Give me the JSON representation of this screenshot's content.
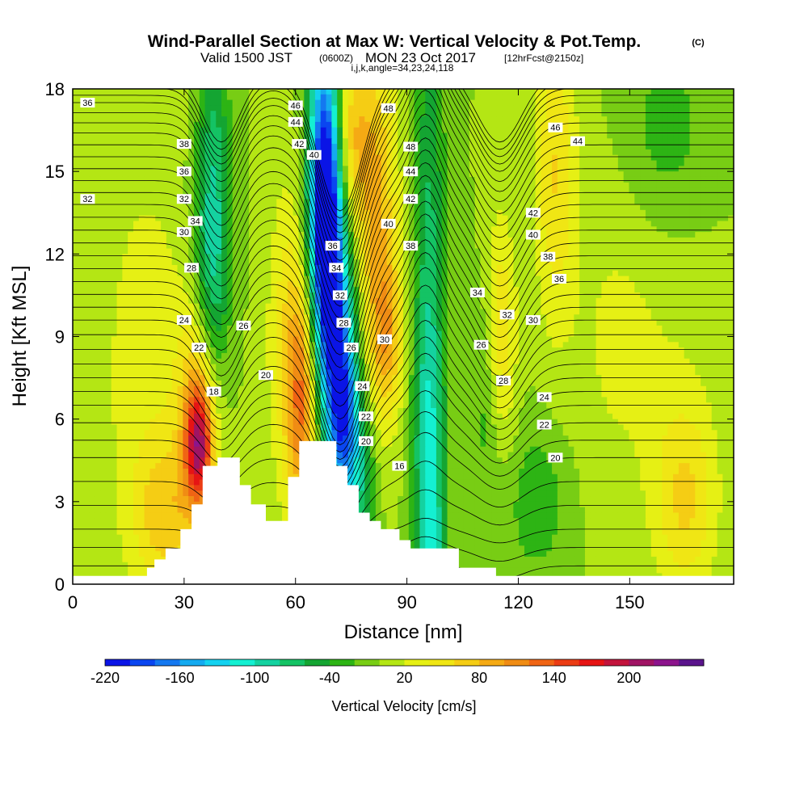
{
  "title": {
    "main": "Wind-Parallel Section at Max W: Vertical Velocity & Pot.Temp.",
    "mark": "(C)",
    "line2_a": "Valid 1500 JST",
    "line2_b": "(0600Z)",
    "line2_c": "MON 23 Oct 2017",
    "line2_d": "[12hrFcst@2150z]",
    "line3": "i,j,k,angle=34,23,24,118"
  },
  "chart_data": {
    "type": "heatmap",
    "xlabel": "Distance [nm]",
    "ylabel": "Height [Kft MSL]",
    "xlim": [
      0,
      178
    ],
    "ylim": [
      0,
      18
    ],
    "xticks": [
      0,
      30,
      60,
      90,
      120,
      150
    ],
    "yticks": [
      0,
      3,
      6,
      9,
      12,
      15,
      18
    ],
    "grid": false,
    "colorbar": {
      "title": "Vertical Velocity [cm/s]",
      "min": -220,
      "step": 20,
      "colors": [
        "#0a14e6",
        "#0a46f0",
        "#1478f0",
        "#14aaf0",
        "#14d2f0",
        "#14f0d2",
        "#14d2a0",
        "#14c364",
        "#14a532",
        "#2db414",
        "#78cd14",
        "#b4e614",
        "#e6f014",
        "#f0e614",
        "#f5cd14",
        "#f5aa14",
        "#f08c14",
        "#f06414",
        "#eb3c14",
        "#e61414",
        "#c3143c",
        "#a01464",
        "#8c148c",
        "#5a148c"
      ],
      "labels": [
        {
          "value": -220,
          "text": "-220"
        },
        {
          "value": -160,
          "text": "-160"
        },
        {
          "value": -100,
          "text": "-100"
        },
        {
          "value": -40,
          "text": "-40"
        },
        {
          "value": 20,
          "text": "20"
        },
        {
          "value": 80,
          "text": "80"
        },
        {
          "value": 140,
          "text": "140"
        },
        {
          "value": 200,
          "text": "200"
        }
      ]
    },
    "vertical_velocity_features": [
      {
        "x": 68,
        "y": 14.5,
        "sx": 3,
        "sy": 4,
        "value": -220
      },
      {
        "x": 70,
        "y": 10.5,
        "sx": 4,
        "sy": 4,
        "value": -140
      },
      {
        "x": 73,
        "y": 6,
        "sx": 3,
        "sy": 2.5,
        "value": -150
      },
      {
        "x": 78,
        "y": 3.5,
        "sx": 3,
        "sy": 2.5,
        "value": -60
      },
      {
        "x": 38,
        "y": 14,
        "sx": 3,
        "sy": 5,
        "value": -70
      },
      {
        "x": 36,
        "y": 11,
        "sx": 4,
        "sy": 3,
        "value": -50
      },
      {
        "x": 96,
        "y": 13,
        "sx": 3,
        "sy": 6,
        "value": -60
      },
      {
        "x": 96,
        "y": 4,
        "sx": 3,
        "sy": 4,
        "value": -90
      },
      {
        "x": 97,
        "y": 1.5,
        "sx": 2,
        "sy": 1,
        "value": -40
      },
      {
        "x": 112,
        "y": 7,
        "sx": 3,
        "sy": 3,
        "value": -40
      },
      {
        "x": 125,
        "y": 3,
        "sx": 6,
        "sy": 2,
        "value": -35
      },
      {
        "x": 160,
        "y": 16.5,
        "sx": 8,
        "sy": 2.5,
        "value": -30
      },
      {
        "x": 34,
        "y": 5,
        "sx": 2.5,
        "sy": 1.5,
        "value": 150
      },
      {
        "x": 34,
        "y": 7,
        "sx": 4,
        "sy": 3,
        "value": 80
      },
      {
        "x": 62,
        "y": 6.5,
        "sx": 3,
        "sy": 3,
        "value": 110
      },
      {
        "x": 58,
        "y": 9,
        "sx": 4,
        "sy": 4,
        "value": 50
      },
      {
        "x": 74,
        "y": 16,
        "sx": 4,
        "sy": 2.5,
        "value": 90
      },
      {
        "x": 82,
        "y": 13,
        "sx": 4,
        "sy": 5,
        "value": 80
      },
      {
        "x": 85,
        "y": 9,
        "sx": 3,
        "sy": 2,
        "value": 60
      },
      {
        "x": 115,
        "y": 9,
        "sx": 3,
        "sy": 3,
        "value": 70
      },
      {
        "x": 130,
        "y": 15,
        "sx": 4,
        "sy": 4,
        "value": 60
      },
      {
        "x": 165,
        "y": 3,
        "sx": 6,
        "sy": 2.5,
        "value": 60
      },
      {
        "x": 20,
        "y": 8,
        "sx": 10,
        "sy": 6,
        "value": 30
      },
      {
        "x": 145,
        "y": 9,
        "sx": 8,
        "sy": 4,
        "value": 20
      },
      {
        "x": 160,
        "y": 8,
        "sx": 10,
        "sy": 4,
        "value": 15
      },
      {
        "x": 25,
        "y": 2.5,
        "sx": 6,
        "sy": 2,
        "value": 60
      }
    ],
    "terrain_kft": [
      [
        0,
        0.3
      ],
      [
        20,
        0.3
      ],
      [
        20,
        0.6
      ],
      [
        22,
        0.6
      ],
      [
        22,
        0.9
      ],
      [
        25,
        0.9
      ],
      [
        25,
        1.3
      ],
      [
        29,
        1.3
      ],
      [
        29,
        2
      ],
      [
        32,
        2
      ],
      [
        32,
        2.9
      ],
      [
        35,
        2.9
      ],
      [
        35,
        4.3
      ],
      [
        39,
        4.3
      ],
      [
        39,
        4.6
      ],
      [
        45,
        4.6
      ],
      [
        45,
        3.6
      ],
      [
        48,
        3.6
      ],
      [
        48,
        2.9
      ],
      [
        52,
        2.9
      ],
      [
        52,
        2.3
      ],
      [
        58,
        2.3
      ],
      [
        58,
        3.9
      ],
      [
        61,
        3.9
      ],
      [
        61,
        5.2
      ],
      [
        71,
        5.2
      ],
      [
        71,
        4.3
      ],
      [
        74,
        4.3
      ],
      [
        74,
        3.6
      ],
      [
        77,
        3.6
      ],
      [
        77,
        2.6
      ],
      [
        80,
        2.6
      ],
      [
        80,
        2.3
      ],
      [
        83,
        2.3
      ],
      [
        83,
        2
      ],
      [
        88,
        2
      ],
      [
        88,
        1.6
      ],
      [
        91,
        1.6
      ],
      [
        91,
        1.3
      ],
      [
        104,
        1.3
      ],
      [
        104,
        0.6
      ],
      [
        114,
        0.6
      ],
      [
        114,
        0.3
      ],
      [
        178,
        0.3
      ]
    ],
    "theta_contours": {
      "units": "deg C",
      "interval": 1,
      "min": 12,
      "max": 49,
      "base_levels": [
        12,
        15,
        18,
        21,
        24,
        27,
        30,
        33,
        36,
        39,
        42,
        45,
        48
      ],
      "base_heights_kft": [
        0,
        2,
        4.6,
        6.5,
        8,
        9.6,
        11,
        12.4,
        13.8,
        15.1,
        16.4,
        17.5,
        18.3
      ],
      "perturbations": [
        {
          "x": 40,
          "sx": 5,
          "shift_kft": -2.5
        },
        {
          "x": 72,
          "sx": 6,
          "shift_kft": -5
        },
        {
          "x": 95,
          "sx": 4,
          "shift_kft": 2
        },
        {
          "x": 115,
          "sx": 6,
          "shift_kft": -2.5
        }
      ],
      "labels": [
        {
          "x": 4,
          "y": 17.5,
          "text": "36"
        },
        {
          "x": 4,
          "y": 14,
          "text": "32"
        },
        {
          "x": 60,
          "y": 17.4,
          "text": "46"
        },
        {
          "x": 60,
          "y": 16.8,
          "text": "44"
        },
        {
          "x": 61,
          "y": 16,
          "text": "42"
        },
        {
          "x": 65,
          "y": 15.6,
          "text": "40"
        },
        {
          "x": 30,
          "y": 16,
          "text": "38"
        },
        {
          "x": 30,
          "y": 15,
          "text": "36"
        },
        {
          "x": 30,
          "y": 14,
          "text": "32"
        },
        {
          "x": 33,
          "y": 13.2,
          "text": "34"
        },
        {
          "x": 30,
          "y": 12.8,
          "text": "30"
        },
        {
          "x": 32,
          "y": 11.5,
          "text": "28"
        },
        {
          "x": 30,
          "y": 9.6,
          "text": "24"
        },
        {
          "x": 46,
          "y": 9.4,
          "text": "26"
        },
        {
          "x": 34,
          "y": 8.6,
          "text": "22"
        },
        {
          "x": 52,
          "y": 7.6,
          "text": "20"
        },
        {
          "x": 38,
          "y": 7,
          "text": "18"
        },
        {
          "x": 70,
          "y": 12.3,
          "text": "36"
        },
        {
          "x": 71,
          "y": 11.5,
          "text": "34"
        },
        {
          "x": 72,
          "y": 10.5,
          "text": "32"
        },
        {
          "x": 73,
          "y": 9.5,
          "text": "28"
        },
        {
          "x": 75,
          "y": 8.6,
          "text": "26"
        },
        {
          "x": 78,
          "y": 7.2,
          "text": "24"
        },
        {
          "x": 79,
          "y": 6.1,
          "text": "22"
        },
        {
          "x": 79,
          "y": 5.2,
          "text": "20"
        },
        {
          "x": 88,
          "y": 4.3,
          "text": "16"
        },
        {
          "x": 84,
          "y": 8.9,
          "text": "30"
        },
        {
          "x": 85,
          "y": 13.1,
          "text": "40"
        },
        {
          "x": 91,
          "y": 12.3,
          "text": "38"
        },
        {
          "x": 91,
          "y": 14,
          "text": "42"
        },
        {
          "x": 91,
          "y": 15,
          "text": "44"
        },
        {
          "x": 91,
          "y": 15.9,
          "text": "48"
        },
        {
          "x": 85,
          "y": 17.3,
          "text": "48"
        },
        {
          "x": 109,
          "y": 10.6,
          "text": "34"
        },
        {
          "x": 117,
          "y": 9.8,
          "text": "32"
        },
        {
          "x": 124,
          "y": 9.6,
          "text": "30"
        },
        {
          "x": 110,
          "y": 8.7,
          "text": "26"
        },
        {
          "x": 116,
          "y": 7.4,
          "text": "28"
        },
        {
          "x": 127,
          "y": 6.8,
          "text": "24"
        },
        {
          "x": 127,
          "y": 5.8,
          "text": "22"
        },
        {
          "x": 130,
          "y": 4.6,
          "text": "20"
        },
        {
          "x": 124,
          "y": 13.5,
          "text": "42"
        },
        {
          "x": 124,
          "y": 12.7,
          "text": "40"
        },
        {
          "x": 128,
          "y": 11.9,
          "text": "38"
        },
        {
          "x": 131,
          "y": 11.1,
          "text": "36"
        },
        {
          "x": 130,
          "y": 16.6,
          "text": "46"
        },
        {
          "x": 136,
          "y": 16.1,
          "text": "44"
        }
      ]
    }
  }
}
